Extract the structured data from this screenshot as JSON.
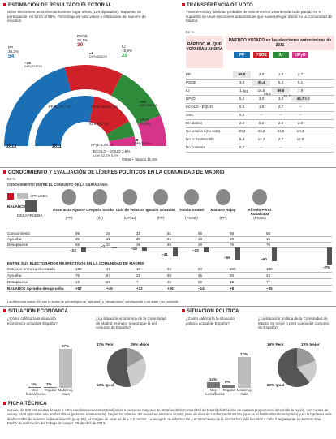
{
  "section1": {
    "title": "Estimación de resultado electoral",
    "subtitle": "Si las elecciones autonómicas tuvieran lugar ahora (129 diputados). Supuesto de participación en torno al 58%. Porcentaje de voto válido y estimación del número de escaños.",
    "year_now": "2013",
    "year_prev": "2011"
  },
  "chart_data": [
    {
      "type": "pie",
      "name": "escaños_2013",
      "seats_total": 129,
      "slices": [
        {
          "party": "PP",
          "pct": "35,2%",
          "seats": 54,
          "change": "−18",
          "change_label": "DIPUTADOS",
          "color": "#1b6fb5"
        },
        {
          "party": "PSOE",
          "pct": "20,1%",
          "seats": 30,
          "change": "−6",
          "change_label": "DIPUTADOS",
          "color": "#d0202a"
        },
        {
          "party": "IU",
          "pct": "18,9%",
          "seats": 29,
          "change": "+16",
          "change_label": "DIPUTADOS",
          "color": "#2e8b3a"
        },
        {
          "party": "UPyD",
          "pct": "10,4%",
          "seats": 16,
          "change": "+8",
          "change_label": "DIPUTADOS",
          "color": "#d6338a"
        }
      ]
    },
    {
      "type": "pie",
      "name": "escaños_2011",
      "seats_total": 129,
      "slices": [
        {
          "party": "PP",
          "pct": "51,7%",
          "seats": 72
        },
        {
          "party": "PSOE",
          "pct": "26,2%",
          "seats": 36
        },
        {
          "party": "IU",
          "pct": "9,6%",
          "seats": 13
        },
        {
          "party": "UPyD",
          "pct": "6,3%",
          "seats": 8
        }
      ]
    },
    {
      "type": "table",
      "name": "transferencia_voto",
      "columns": [
        "PP",
        "PSOE",
        "IU",
        "UPyD"
      ],
      "rows": [
        {
          "label": "PP",
          "values": [
            "56,8",
            "3,8",
            "1,8",
            "2,7"
          ]
        },
        {
          "label": "PSOE",
          "values": [
            "3,8",
            "35,4",
            "5,4",
            "5,1"
          ]
        },
        {
          "label": "IU",
          "values": [
            "1,5",
            "16,5",
            "59,6",
            "7,9"
          ]
        },
        {
          "label": "UPyD",
          "values": [
            "5,2",
            "3,3",
            "3,3",
            "48,7"
          ]
        },
        {
          "label": "ECOLO - EQUO",
          "values": [
            "0,5",
            "1,8",
            "2,7",
            "–"
          ]
        },
        {
          "label": "Otro",
          "values": [
            "0,5",
            "–",
            "–",
            "–"
          ]
        },
        {
          "label": "En blanco",
          "values": [
            "2,3",
            "5,6",
            "2,5",
            "2,0"
          ]
        },
        {
          "label": "No votaría / (no voto)",
          "values": [
            "20,2",
            "23,2",
            "21,6",
            "10,3"
          ]
        },
        {
          "label": "No lo ha decidido",
          "values": [
            "9,8",
            "14,2",
            "2,7",
            "12,8"
          ]
        },
        {
          "label": "No contesta",
          "values": [
            "0,7",
            "–",
            "–",
            "–"
          ]
        }
      ],
      "totals": [
        "81",
        "69,3",
        "78,7",
        "76,9"
      ]
    },
    {
      "type": "bar",
      "name": "conocimiento_lideres",
      "categories": [
        "Esperanza Aguirre (PP)",
        "Gregorio Gordo (IU)",
        "Luis de Velasco (UPyD)",
        "Ignacio González (PP)",
        "Tomás Gómez (PSOE)",
        "Mariano Rajoy (PP)",
        "Alfredo Pérez Rubalcaba (PSOE)"
      ],
      "conocimiento": [
        "99",
        "29",
        "31",
        "81",
        "66",
        "99",
        "98"
      ],
      "aprueba": [
        "35",
        "21",
        "20",
        "24",
        "18",
        "20",
        "16"
      ],
      "desaprueba": [
        "58",
        "23",
        "36",
        "65",
        "38",
        "75",
        "76"
      ],
      "balance": [
        -23,
        -2,
        -16,
        -41,
        -20,
        -55,
        -60
      ],
      "balance_label": [
        "−23",
        "−2",
        "−16",
        "−41",
        "−20",
        "−55",
        "−60"
      ]
    },
    {
      "type": "bar",
      "name": "electorados",
      "conocen": [
        "100",
        "49",
        "18",
        "84",
        "60",
        "100",
        "100"
      ],
      "aprueba": [
        "76",
        "67",
        "29",
        "58",
        "45",
        "50",
        "42"
      ],
      "desaprueba": [
        "19",
        "22",
        "7",
        "32",
        "59",
        "42",
        "77"
      ],
      "balance": [
        "+57",
        "+45",
        "+22",
        "+26",
        "−14",
        "+8",
        "−35"
      ]
    },
    {
      "type": "bar",
      "name": "situacion_economica_espana",
      "categories": [
        "Muy buena/buena",
        "Regular",
        "Mala/muy mala"
      ],
      "values": [
        1,
        2,
        97
      ],
      "labels": [
        "1%",
        "2%",
        "97%"
      ]
    },
    {
      "type": "bar",
      "name": "situacion_politica_espana",
      "categories": [
        "Muy buena/buena",
        "Regular",
        "Mala/muy mala"
      ],
      "values": [
        14,
        8,
        77
      ],
      "labels": [
        "14%",
        "8%",
        "77%"
      ]
    },
    {
      "type": "pie",
      "name": "economia_futuro",
      "slices": [
        {
          "label": "Peor",
          "pct": 17
        },
        {
          "label": "Mejor",
          "pct": 29
        },
        {
          "label": "Igual",
          "pct": 53
        }
      ]
    },
    {
      "type": "pie",
      "name": "politica_futuro",
      "slices": [
        {
          "label": "Peor",
          "pct": 19
        },
        {
          "label": "Mejor",
          "pct": 19
        },
        {
          "label": "Igual",
          "pct": 60
        }
      ]
    }
  ],
  "texts": {
    "ecolo": "ECOLO - EQUO 3,8%",
    "otros": "Otros + blanco 11,6%",
    "ecolo_pct": "1,0% S2,2% 5,7%",
    "s2_title": "Transferencia de voto",
    "s2_sub": "Transferencia y fidelidad probable de voto entre los votantes de cada partido en el supuesto de unas elecciones autonómicas que tuvieran lugar ahora en la Comunidad de Madrid.",
    "s2_pct": "En %",
    "s2_col1": "PARTIDO AL QUE VOTARÍAN AHORA",
    "s2_col2": "PARTIDO VOTADO en las elecciones autonómicas de 2011",
    "s3_title": "Conocimiento y evaluación de líderes políticos en la Comunidad de Madrid",
    "s3_pct": "En %",
    "s3_sub": "CONOCIMIENTO ENTRE EL CONJUNTO DE LA CIUDADANÍA",
    "aprueba": "APRUEBA",
    "balance": "BALANCE",
    "desaprueba": "DESAPRUEBA",
    "conocimiento": "Conocimiento",
    "r_aprueba": "Aprueba",
    "r_desaprueba": "Desaprueba",
    "s3_sub2": "ENTRE SUS ELECTORADOS RESPECTIVOS EN LA COMUNIDAD DE MADRID",
    "conocen": "Conocen entre su electorado",
    "balance_row": "BALANCE Aprueba-desaprueba",
    "note": "La diferencia hasta 100 son la suma de porcentajes de \"aprueba\" y \"desaprueba\" corresponde a no sabe / no contesta",
    "s4_title": "Situación económica",
    "s4_q1": "¿Cómo calificaría la situación económica actual de España?",
    "s4_q2": "¿La situación económica de la Comunidad de Madrid es mejor o peor que la del conjunto de España?",
    "s5_title": "Situación política",
    "s5_q1": "¿Cómo calificaría la situación política actual de España?",
    "s5_q2": "¿La situación política de la Comunidad de Madrid es mejor o peor que la del conjunto de España?",
    "peor": "Peor",
    "mejor": "Mejor",
    "igual": "Igual",
    "s6_title": "Ficha técnica",
    "s6_body": "Sondeo de 600 entrevistas llevado a cabo mediante entrevistas telefónicas a personas mayores de 18 años de la Comunidad de Madrid distribuidas de manera proporcional al total de la región, con cuotas de sexo y edad aplicadas a la unidad última (persona entrevistada). Según los criterios del muestreo aleatorio simple, para un nivel de confianza del 95,5% (que es el habitualmente adoptado) y en la hipótesis más desfavorable de máxima indeterminación (p=q=50), el margen de error es de ± 4,2 puntos. La recogida de información y el tratamiento de la misma han sido llevados a cabo íntegramente en Metroscopia. Fecha de realización del trabajo de campo: 29 de abril de 2013."
  },
  "leaders": [
    {
      "name": "Esperanza Aguirre",
      "party": "(PP)"
    },
    {
      "name": "Gregorio Gordo",
      "party": "(IU)"
    },
    {
      "name": "Luis de Velasco",
      "party": "(UPyD)"
    },
    {
      "name": "Ignacio González",
      "party": "(PP)"
    },
    {
      "name": "Tomás Gómez",
      "party": "(PSOE)"
    },
    {
      "name": "Mariano Rajoy",
      "party": "(PP)"
    },
    {
      "name": "Alfredo Pérez Rubalcaba",
      "party": "(PSOE)"
    }
  ],
  "colors": {
    "red": "#c7161d",
    "pp": "#1b6fb5",
    "psoe": "#d0202a",
    "iu": "#2e8b3a",
    "upyd": "#d6338a",
    "grey": "#bdbdbd",
    "dark": "#555"
  }
}
